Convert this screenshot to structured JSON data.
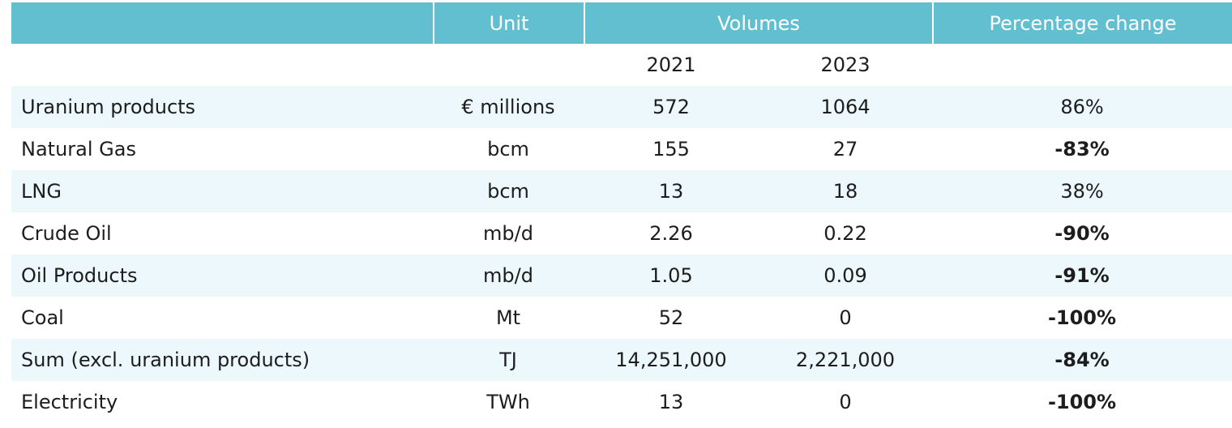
{
  "header": {
    "unit_label": "Unit",
    "volumes_label": "Volumes",
    "change_label": "Percentage change"
  },
  "years": {
    "y1": "2021",
    "y2": "2023"
  },
  "colors": {
    "header_bg": "#62bfd0",
    "stripe_bg": "#ecf8fb"
  },
  "rows": [
    {
      "label": "Uranium products",
      "unit": "€ millions",
      "v2021": "572",
      "v2023": "1064",
      "change": "86%",
      "bold": false
    },
    {
      "label": "Natural Gas",
      "unit": "bcm",
      "v2021": "155",
      "v2023": "27",
      "change": "-83%",
      "bold": true
    },
    {
      "label": "LNG",
      "unit": "bcm",
      "v2021": "13",
      "v2023": "18",
      "change": "38%",
      "bold": false
    },
    {
      "label": "Crude Oil",
      "unit": "mb/d",
      "v2021": "2.26",
      "v2023": "0.22",
      "change": "-90%",
      "bold": true
    },
    {
      "label": "Oil Products",
      "unit": "mb/d",
      "v2021": "1.05",
      "v2023": "0.09",
      "change": "-91%",
      "bold": true
    },
    {
      "label": "Coal",
      "unit": "Mt",
      "v2021": "52",
      "v2023": "0",
      "change": "-100%",
      "bold": true
    },
    {
      "label": "Sum (excl. uranium products)",
      "unit": "TJ",
      "v2021": "14,251,000",
      "v2023": "2,221,000",
      "change": "-84%",
      "bold": true
    },
    {
      "label": "Electricity",
      "unit": "TWh",
      "v2021": "13",
      "v2023": "0",
      "change": "-100%",
      "bold": true
    }
  ]
}
